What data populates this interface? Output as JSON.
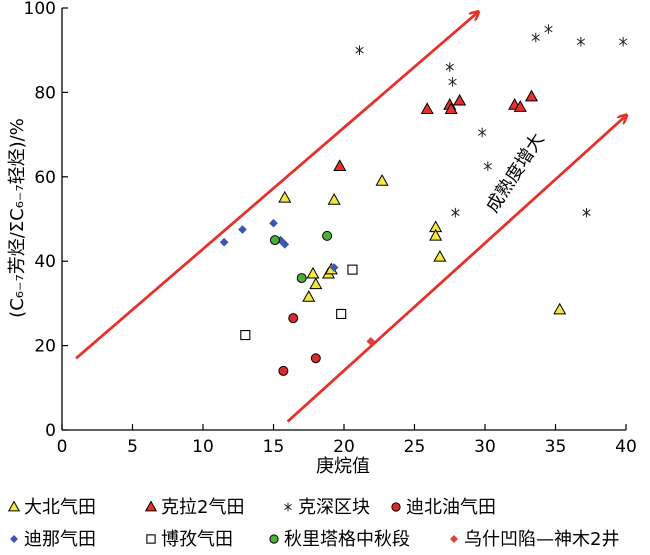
{
  "chart_data": {
    "type": "scatter",
    "xlabel": "庚烷值",
    "ylabel": "(C₆₋₇芳烃/ΣC₆₋₇轻烃)/%",
    "xlim": [
      0,
      40
    ],
    "ylim": [
      0,
      100
    ],
    "xticks": [
      "0",
      "5",
      "10",
      "15",
      "20",
      "25",
      "30",
      "35",
      "40"
    ],
    "yticks": [
      "0",
      "20",
      "40",
      "60",
      "80",
      "100"
    ],
    "annotation": "成熟度增大",
    "arrows": [
      {
        "from": [
          1,
          17
        ],
        "to": [
          29.5,
          99
        ]
      },
      {
        "from": [
          16,
          2
        ],
        "to": [
          40,
          74.5
        ]
      }
    ],
    "series": [
      {
        "name": "大北气田",
        "marker": "triangle",
        "color": "#f5e642",
        "points": [
          [
            15.8,
            55
          ],
          [
            17.5,
            31.5
          ],
          [
            17.8,
            37
          ],
          [
            18.0,
            34.5
          ],
          [
            18.9,
            37
          ],
          [
            19.1,
            38
          ],
          [
            19.3,
            54.5
          ],
          [
            22.7,
            59
          ],
          [
            26.5,
            48
          ],
          [
            26.5,
            46
          ],
          [
            26.8,
            41
          ],
          [
            35.3,
            28.5
          ]
        ]
      },
      {
        "name": "克拉2气田",
        "marker": "triangle",
        "color": "#e8302b",
        "points": [
          [
            19.7,
            62.5
          ],
          [
            25.9,
            76
          ],
          [
            27.5,
            77
          ],
          [
            27.6,
            76
          ],
          [
            28.2,
            78
          ],
          [
            32.1,
            77
          ],
          [
            32.5,
            76.5
          ],
          [
            33.3,
            79
          ]
        ]
      },
      {
        "name": "克深区块",
        "marker": "star",
        "color": "#222222",
        "points": [
          [
            21.1,
            90
          ],
          [
            27.5,
            86
          ],
          [
            27.7,
            82.5
          ],
          [
            27.9,
            51.5
          ],
          [
            29.8,
            70.5
          ],
          [
            30.2,
            62.5
          ],
          [
            33.6,
            93
          ],
          [
            34.5,
            95
          ],
          [
            36.8,
            92
          ],
          [
            37.2,
            51.5
          ],
          [
            39.8,
            92
          ]
        ]
      },
      {
        "name": "迪北油气田",
        "marker": "circle",
        "color": "#d92b2b",
        "points": [
          [
            15.7,
            14
          ],
          [
            16.4,
            26.5
          ],
          [
            18.0,
            17
          ]
        ]
      },
      {
        "name": "迪那气田",
        "marker": "diamond",
        "color": "#3a56b0",
        "points": [
          [
            11.5,
            44.5
          ],
          [
            12.8,
            47.5
          ],
          [
            15.0,
            49
          ],
          [
            15.5,
            45
          ],
          [
            15.8,
            44
          ],
          [
            19.3,
            38.5
          ]
        ]
      },
      {
        "name": "博孜气田",
        "marker": "square",
        "color": "#ffffff",
        "points": [
          [
            13.0,
            22.5
          ],
          [
            19.8,
            27.5
          ],
          [
            20.6,
            38
          ]
        ]
      },
      {
        "name": "秋里塔格中秋段",
        "marker": "circle",
        "color": "#4caf3a",
        "points": [
          [
            15.1,
            45
          ],
          [
            17.0,
            36
          ],
          [
            18.8,
            46
          ]
        ]
      },
      {
        "name": "乌什凹陷—神木2井",
        "marker": "diamond",
        "color": "#d9443b",
        "points": [
          [
            21.9,
            21
          ]
        ]
      }
    ]
  }
}
